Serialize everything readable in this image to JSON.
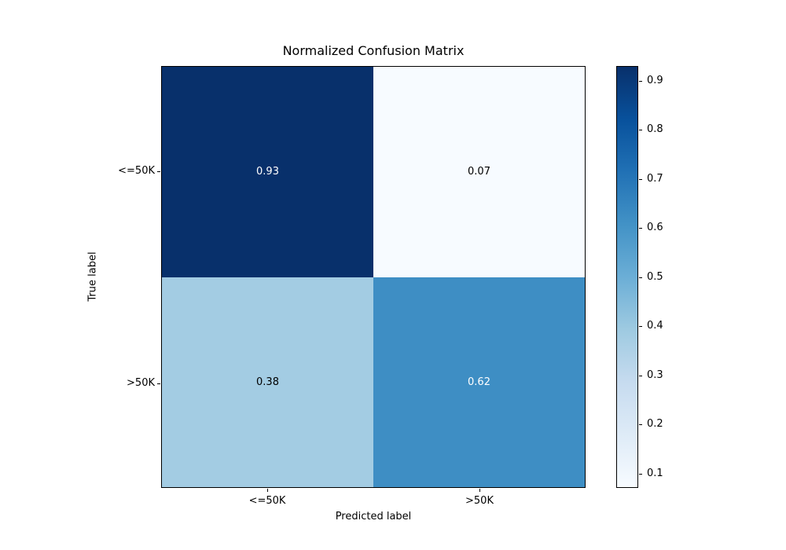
{
  "chart_data": {
    "type": "heatmap",
    "title": "Normalized Confusion Matrix",
    "xlabel": "Predicted label",
    "ylabel": "True label",
    "x_tick_labels": [
      "<=50K",
      ">50K"
    ],
    "y_tick_labels": [
      "<=50K",
      ">50K"
    ],
    "matrix": [
      [
        0.93,
        0.07
      ],
      [
        0.38,
        0.62
      ]
    ],
    "cell_labels": [
      [
        "0.93",
        "0.07"
      ],
      [
        "0.38",
        "0.62"
      ]
    ],
    "cell_colors": [
      [
        "#08306b",
        "#f7fbff"
      ],
      [
        "#a3cce3",
        "#3e8ec4"
      ]
    ],
    "cell_text_colors": [
      [
        "#ffffff",
        "#000000"
      ],
      [
        "#000000",
        "#ffffff"
      ]
    ],
    "colormap": "Blues",
    "vmin": 0.07,
    "vmax": 0.93,
    "grid": false,
    "colorbar": {
      "position": "right",
      "ticks": [
        "0.9",
        "0.8",
        "0.7",
        "0.6",
        "0.5",
        "0.4",
        "0.3",
        "0.2",
        "0.1"
      ],
      "gradient_stops_bottom_to_top": [
        "#f7fbff",
        "#deebf7",
        "#c6dbef",
        "#9ecae1",
        "#6baed6",
        "#4292c6",
        "#2171b5",
        "#08519c",
        "#08306b"
      ]
    }
  }
}
